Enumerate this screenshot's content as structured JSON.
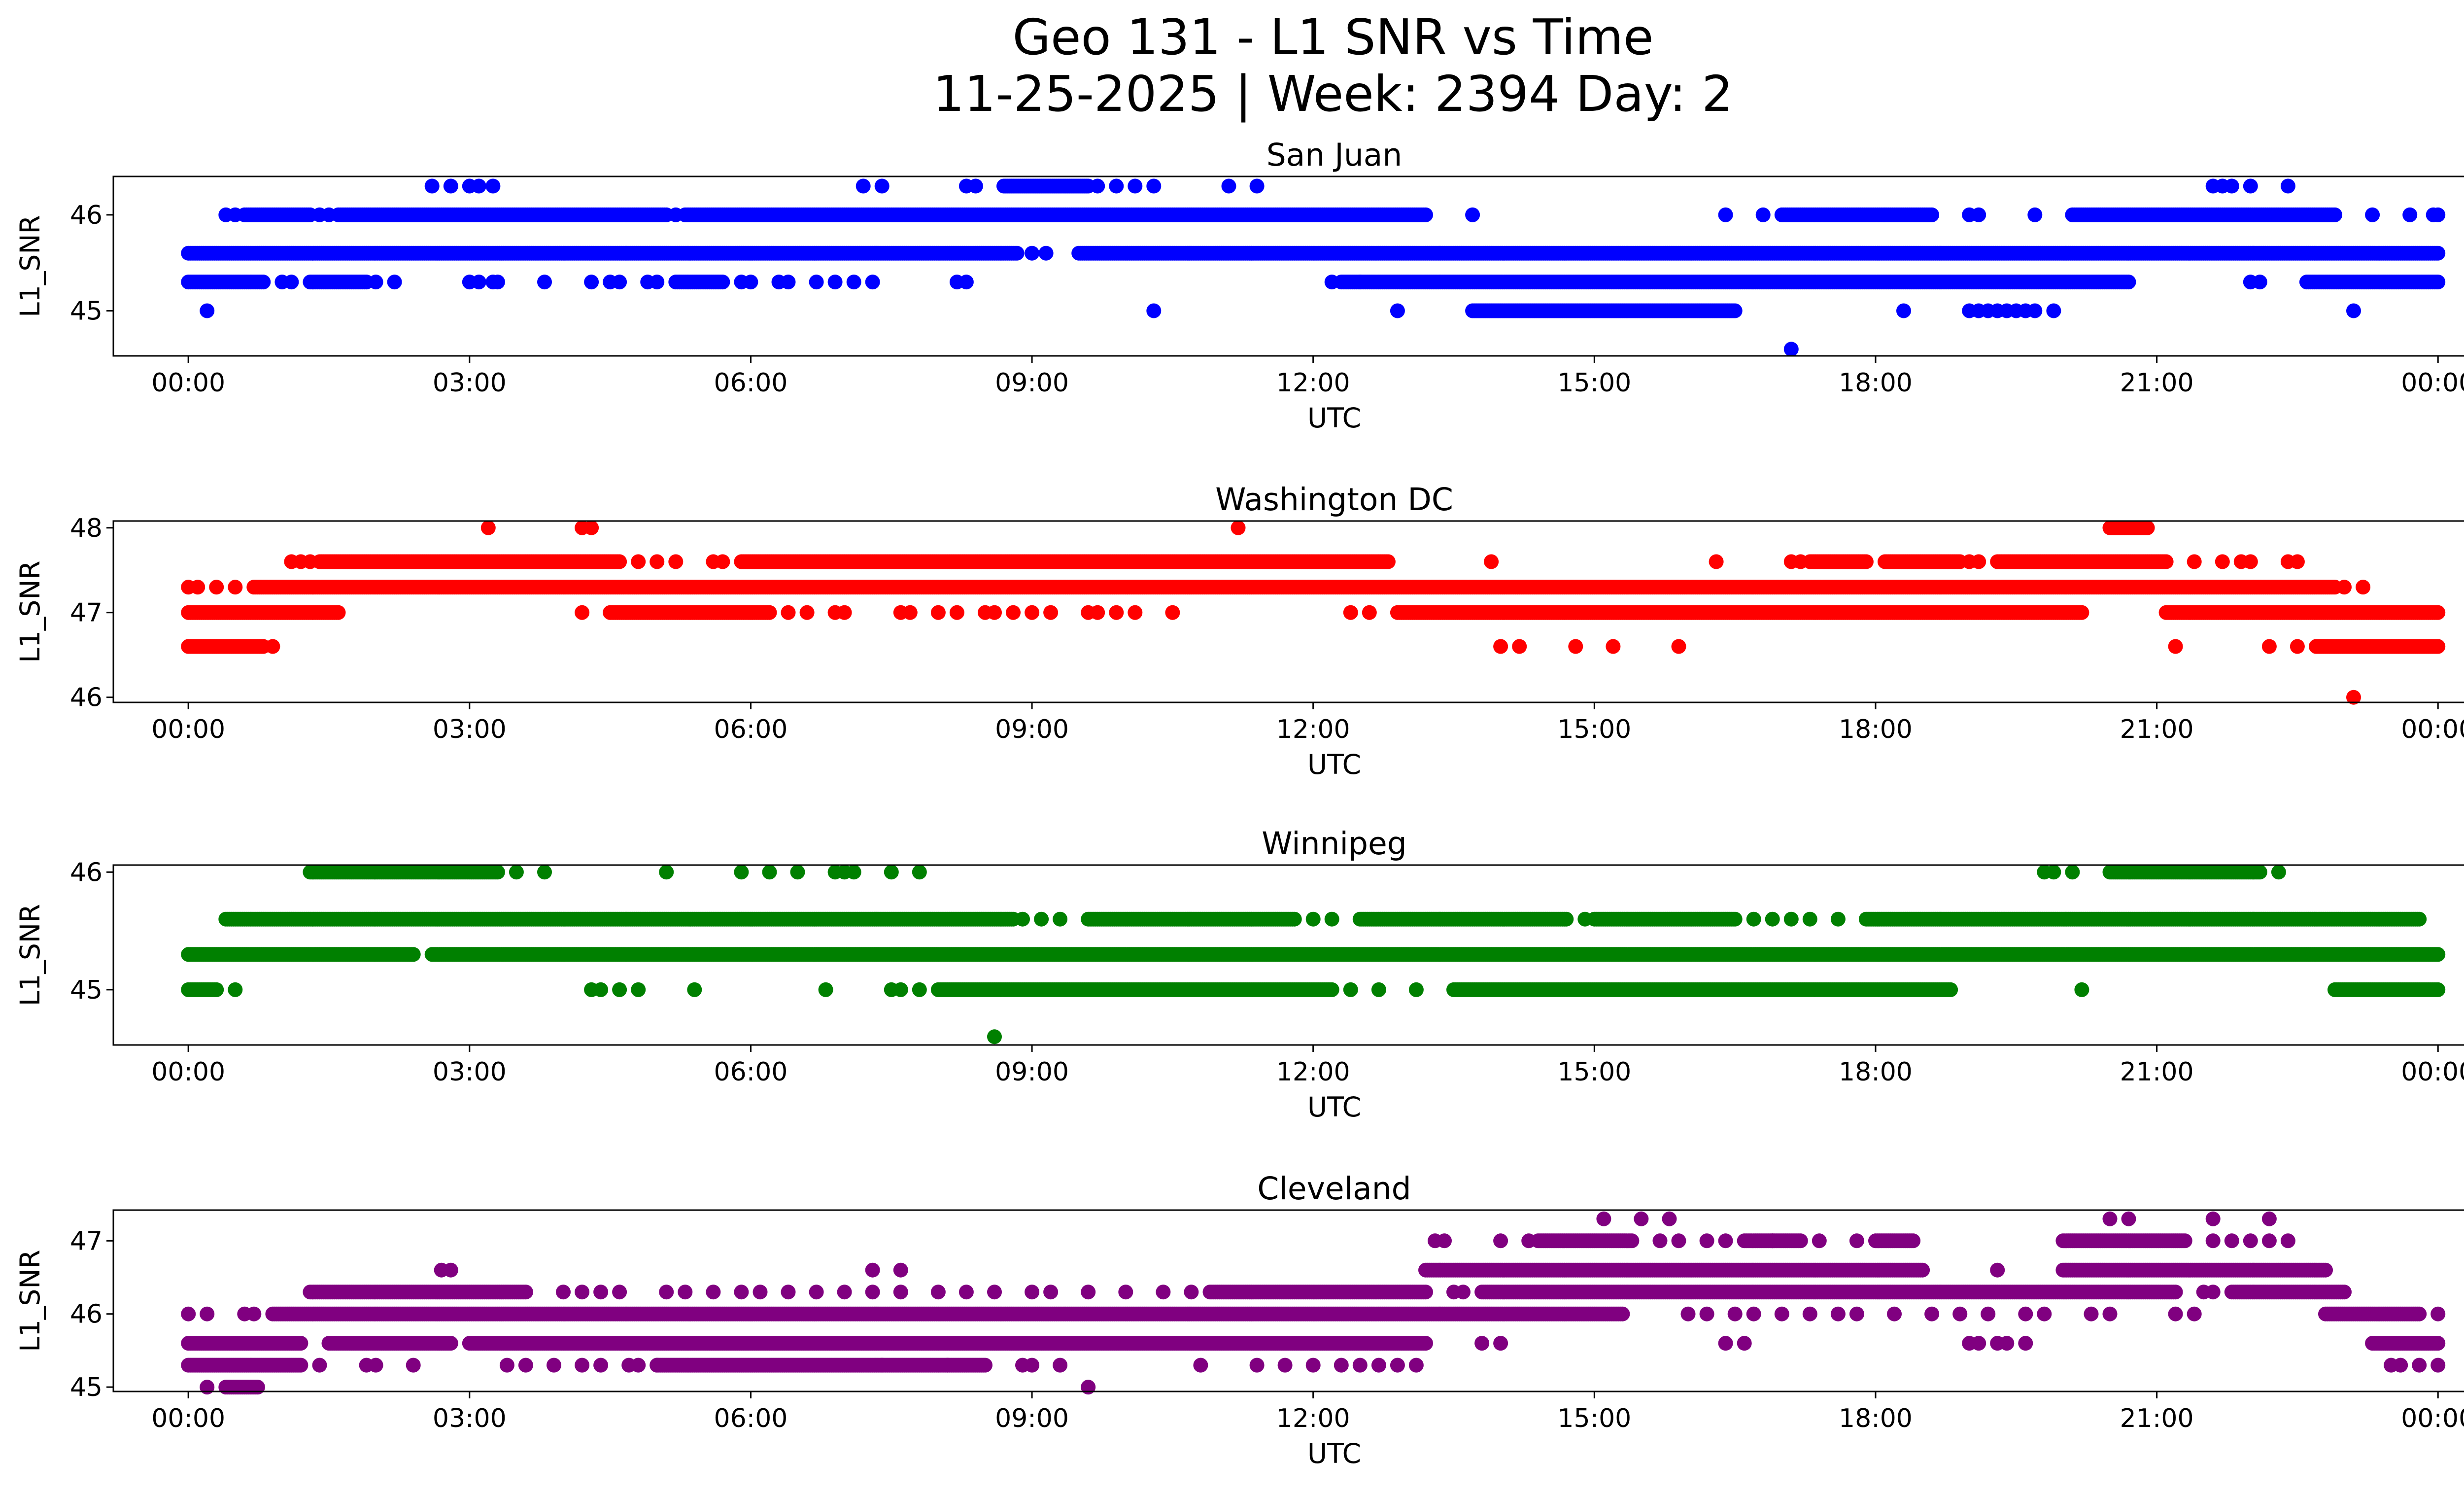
{
  "figure": {
    "title_line1": "Geo 131 - L1 SNR vs Time",
    "title_line2": "11-25-2025 | Week: 2394 Day: 2"
  },
  "chart_data": [
    {
      "type": "scatter",
      "title": "San Juan",
      "xlabel": "UTC",
      "ylabel": "L1_SNR",
      "color": "#0000ff",
      "xlim": [
        -0.8,
        25.25
      ],
      "ylim": [
        44.53,
        46.4
      ],
      "xticks": [
        0,
        3,
        6,
        9,
        12,
        15,
        18,
        21,
        24
      ],
      "xticklabels": [
        "00:00",
        "03:00",
        "06:00",
        "09:00",
        "12:00",
        "15:00",
        "18:00",
        "21:00",
        "00:00"
      ],
      "yticks": [
        45,
        46
      ],
      "yticklabels": [
        "45",
        "46"
      ],
      "series": [
        {
          "y": 45.6,
          "ranges": [
            [
              0,
              8.85
            ],
            [
              9.5,
              24
            ]
          ],
          "points": [
            9.0,
            9.15
          ]
        },
        {
          "y": 46.0,
          "ranges": [
            [
              0.6,
              1.3
            ],
            [
              1.6,
              5.1
            ],
            [
              5.3,
              13.2
            ],
            [
              17.0,
              18.6
            ],
            [
              20.1,
              22.9
            ]
          ],
          "points": [
            0.4,
            0.5,
            1.4,
            1.5,
            5.2,
            13.7,
            16.4,
            16.8,
            18.1,
            19.0,
            19.1,
            19.7,
            23.3,
            23.7,
            23.95,
            24.0
          ]
        },
        {
          "y": 45.3,
          "ranges": [
            [
              0,
              0.8
            ],
            [
              1.3,
              1.9
            ],
            [
              5.2,
              5.7
            ],
            [
              12.3,
              20.7
            ],
            [
              22.6,
              24
            ]
          ],
          "points": [
            1.0,
            1.1,
            2.0,
            2.2,
            3.0,
            3.1,
            3.25,
            3.3,
            3.8,
            4.3,
            4.5,
            4.6,
            4.9,
            5.0,
            5.9,
            6.0,
            6.3,
            6.4,
            6.7,
            6.9,
            7.1,
            7.3,
            8.2,
            8.3,
            12.2,
            12.5,
            22.0,
            22.1
          ]
        },
        {
          "y": 46.3,
          "ranges": [
            [
              8.7,
              9.6
            ]
          ],
          "points": [
            2.6,
            2.8,
            3.0,
            3.1,
            3.25,
            7.2,
            7.4,
            8.3,
            8.4,
            9.7,
            9.9,
            10.1,
            10.3,
            11.1,
            11.4,
            21.6,
            21.7,
            21.8,
            22.0,
            22.4
          ]
        },
        {
          "y": 45.0,
          "ranges": [
            [
              13.7,
              16.5
            ]
          ],
          "points": [
            0.2,
            10.3,
            12.9,
            18.3,
            19.0,
            19.1,
            19.2,
            19.3,
            19.4,
            19.5,
            19.6,
            19.7,
            19.9,
            23.1
          ]
        },
        {
          "y": 44.6,
          "ranges": [],
          "points": [
            17.1
          ]
        }
      ]
    },
    {
      "type": "scatter",
      "title": "Washington DC",
      "xlabel": "UTC",
      "ylabel": "L1_SNR",
      "color": "#ff0000",
      "xlim": [
        -0.8,
        25.25
      ],
      "ylim": [
        45.94,
        48.08
      ],
      "xticks": [
        0,
        3,
        6,
        9,
        12,
        15,
        18,
        21,
        24
      ],
      "xticklabels": [
        "00:00",
        "03:00",
        "06:00",
        "09:00",
        "12:00",
        "15:00",
        "18:00",
        "21:00",
        "00:00"
      ],
      "yticks": [
        46,
        47,
        48
      ],
      "yticklabels": [
        "46",
        "47",
        "48"
      ],
      "series": [
        {
          "y": 47.3,
          "ranges": [
            [
              0.7,
              22.9
            ]
          ],
          "points": [
            0.0,
            0.1,
            0.3,
            0.5,
            23.0,
            23.2
          ]
        },
        {
          "y": 47.0,
          "ranges": [
            [
              0,
              1.6
            ],
            [
              4.5,
              6.2
            ],
            [
              12.9,
              20.2
            ],
            [
              21.1,
              24
            ]
          ],
          "points": [
            4.2,
            6.4,
            6.6,
            6.9,
            7.0,
            7.6,
            7.7,
            8.0,
            8.2,
            8.5,
            8.6,
            8.8,
            9.0,
            9.2,
            9.6,
            9.7,
            9.9,
            10.1,
            10.5,
            12.4,
            12.6
          ]
        },
        {
          "y": 46.6,
          "ranges": [
            [
              0,
              0.8
            ],
            [
              22.7,
              24
            ]
          ],
          "points": [
            0.9,
            14.0,
            14.2,
            14.8,
            15.2,
            15.9,
            21.2,
            22.2,
            22.5
          ]
        },
        {
          "y": 47.6,
          "ranges": [
            [
              1.4,
              4.6
            ],
            [
              5.9,
              12.8
            ],
            [
              17.3,
              17.9
            ],
            [
              18.1,
              18.9
            ],
            [
              19.3,
              21.1
            ]
          ],
          "points": [
            1.1,
            1.2,
            1.3,
            4.8,
            5.0,
            5.2,
            5.6,
            5.7,
            13.9,
            16.3,
            17.1,
            17.2,
            19.0,
            19.1,
            21.4,
            21.7,
            21.9,
            22.0,
            22.4,
            22.5
          ]
        },
        {
          "y": 48.0,
          "ranges": [
            [
              20.5,
              20.9
            ]
          ],
          "points": [
            3.2,
            4.2,
            4.3,
            11.2
          ]
        },
        {
          "y": 46.0,
          "ranges": [],
          "points": [
            23.1
          ]
        }
      ]
    },
    {
      "type": "scatter",
      "title": "Winnipeg",
      "xlabel": "UTC",
      "ylabel": "L1_SNR",
      "color": "#008000",
      "xlim": [
        -0.8,
        25.25
      ],
      "ylim": [
        44.53,
        46.06
      ],
      "xticks": [
        0,
        3,
        6,
        9,
        12,
        15,
        18,
        21,
        24
      ],
      "xticklabels": [
        "00:00",
        "03:00",
        "06:00",
        "09:00",
        "12:00",
        "15:00",
        "18:00",
        "21:00",
        "00:00"
      ],
      "yticks": [
        45,
        46
      ],
      "yticklabels": [
        "45",
        "46"
      ],
      "series": [
        {
          "y": 45.3,
          "ranges": [
            [
              0,
              2.4
            ],
            [
              2.6,
              24
            ]
          ],
          "points": []
        },
        {
          "y": 45.6,
          "ranges": [
            [
              0.4,
              8.8
            ],
            [
              9.6,
              11.8
            ],
            [
              12.5,
              14.7
            ],
            [
              15.0,
              16.5
            ],
            [
              17.9,
              23.8
            ]
          ],
          "points": [
            8.9,
            9.1,
            9.3,
            12.0,
            12.2,
            14.9,
            16.7,
            16.9,
            17.1,
            17.3,
            17.6
          ]
        },
        {
          "y": 45.0,
          "ranges": [
            [
              0,
              0.3
            ],
            [
              8.0,
              12.2
            ],
            [
              13.5,
              18.8
            ],
            [
              22.9,
              24
            ]
          ],
          "points": [
            0.5,
            4.3,
            4.4,
            4.6,
            4.8,
            5.4,
            6.8,
            7.5,
            7.6,
            7.8,
            12.4,
            12.7,
            13.1,
            20.2
          ]
        },
        {
          "y": 46.0,
          "ranges": [
            [
              1.3,
              3.3
            ],
            [
              20.5,
              22.1
            ]
          ],
          "points": [
            3.5,
            3.8,
            5.1,
            5.9,
            6.2,
            6.5,
            6.9,
            7.0,
            7.1,
            7.5,
            7.8,
            19.8,
            19.9,
            20.1,
            22.3
          ]
        },
        {
          "y": 44.6,
          "ranges": [],
          "points": [
            8.6
          ]
        }
      ]
    },
    {
      "type": "scatter",
      "title": "Cleveland",
      "xlabel": "UTC",
      "ylabel": "L1_SNR",
      "color": "#800080",
      "xlim": [
        -0.8,
        25.25
      ],
      "ylim": [
        44.94,
        47.42
      ],
      "xticks": [
        0,
        3,
        6,
        9,
        12,
        15,
        18,
        21,
        24
      ],
      "xticklabels": [
        "00:00",
        "03:00",
        "06:00",
        "09:00",
        "12:00",
        "15:00",
        "18:00",
        "21:00",
        "00:00"
      ],
      "yticks": [
        45,
        46,
        47
      ],
      "yticklabels": [
        "45",
        "46",
        "47"
      ],
      "series": [
        {
          "y": 45.6,
          "ranges": [
            [
              0,
              1.2
            ],
            [
              1.5,
              2.8
            ],
            [
              3.0,
              13.2
            ],
            [
              23.3,
              24
            ]
          ],
          "points": [
            13.8,
            14.0,
            16.4,
            16.6,
            19.0,
            19.1,
            19.3,
            19.4,
            19.6
          ]
        },
        {
          "y": 46.0,
          "ranges": [
            [
              0.9,
              15.3
            ],
            [
              22.8,
              23.8
            ]
          ],
          "points": [
            0.0,
            0.2,
            0.6,
            0.7,
            16.0,
            16.2,
            16.5,
            16.7,
            17.0,
            17.3,
            17.6,
            17.8,
            18.2,
            18.6,
            18.9,
            19.2,
            19.6,
            19.8,
            20.3,
            20.5,
            21.2,
            21.4,
            24.0
          ]
        },
        {
          "y": 45.3,
          "ranges": [
            [
              0,
              1.2
            ],
            [
              5.0,
              8.5
            ]
          ],
          "points": [
            1.4,
            1.9,
            2.0,
            2.4,
            3.4,
            3.6,
            3.9,
            4.2,
            4.4,
            4.7,
            4.8,
            5.0,
            7.4,
            8.1,
            8.9,
            9.0,
            9.3,
            10.8,
            11.4,
            11.7,
            12.0,
            12.3,
            12.5,
            12.7,
            12.9,
            13.1,
            23.5,
            23.6,
            23.8,
            24.0
          ]
        },
        {
          "y": 46.3,
          "ranges": [
            [
              1.3,
              3.6
            ],
            [
              10.9,
              13.2
            ],
            [
              13.8,
              21.2
            ],
            [
              21.8,
              23.0
            ]
          ],
          "points": [
            4.0,
            4.2,
            4.4,
            4.6,
            5.1,
            5.3,
            5.6,
            5.9,
            6.1,
            6.4,
            6.7,
            7.0,
            7.3,
            7.6,
            8.0,
            8.3,
            8.6,
            9.0,
            9.2,
            9.6,
            10.0,
            10.4,
            10.7,
            13.5,
            13.6,
            21.5,
            21.6
          ]
        },
        {
          "y": 46.6,
          "ranges": [
            [
              13.2,
              18.5
            ],
            [
              20.0,
              22.8
            ]
          ],
          "points": [
            2.7,
            2.8,
            7.3,
            7.6,
            19.3
          ]
        },
        {
          "y": 47.0,
          "ranges": [
            [
              14.4,
              15.4
            ],
            [
              16.6,
              17.2
            ],
            [
              18.0,
              18.4
            ],
            [
              20.0,
              21.3
            ]
          ],
          "points": [
            13.3,
            13.4,
            14.0,
            14.3,
            15.7,
            15.9,
            16.2,
            16.4,
            16.9,
            17.4,
            17.8,
            21.6,
            21.8,
            22.0,
            22.2,
            22.4
          ]
        },
        {
          "y": 47.3,
          "ranges": [],
          "points": [
            15.1,
            15.5,
            15.8,
            20.5,
            20.7,
            21.6,
            22.2
          ]
        },
        {
          "y": 45.0,
          "ranges": [
            [
              0.4,
              0.75
            ]
          ],
          "points": [
            0.2,
            9.6
          ]
        }
      ]
    }
  ]
}
